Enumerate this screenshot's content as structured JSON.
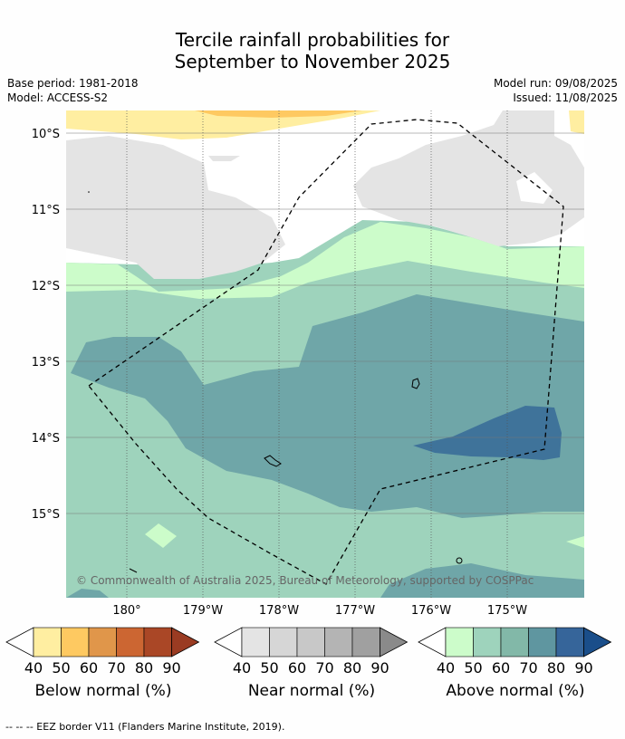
{
  "title": {
    "line1": "Tercile rainfall probabilities for",
    "line2": "September to November 2025"
  },
  "meta": {
    "base_period": "Base period: 1981-2018",
    "model": "Model: ACCESS-S2",
    "model_run": "Model run: 09/08/2025",
    "issued": "Issued: 11/08/2025"
  },
  "axes": {
    "lat_labels": [
      "10°S",
      "11°S",
      "12°S",
      "13°S",
      "14°S",
      "15°S"
    ],
    "lon_labels": [
      "180°",
      "179°W",
      "178°W",
      "177°W",
      "176°W",
      "175°W"
    ]
  },
  "copyright": "© Commonwealth of Australia 2025, Bureau of Meteorology, supported by COSPPac",
  "colorbars": [
    {
      "label": "Below normal (%)",
      "ticks": [
        "40",
        "50",
        "60",
        "70",
        "80",
        "90"
      ],
      "colors": [
        "#ffeea1",
        "#fec961",
        "#e0964a",
        "#cc6632",
        "#aa4726",
        "#9a3b22"
      ]
    },
    {
      "label": "Near normal (%)",
      "ticks": [
        "40",
        "50",
        "60",
        "70",
        "80",
        "90"
      ],
      "colors": [
        "#e4e4e4",
        "#d6d6d6",
        "#c8c8c8",
        "#b4b4b4",
        "#a0a0a0",
        "#8a8a8a"
      ]
    },
    {
      "label": "Above normal (%)",
      "ticks": [
        "40",
        "50",
        "60",
        "70",
        "80",
        "90"
      ],
      "colors": [
        "#ccfcca",
        "#9ed3bc",
        "#82b8a8",
        "#5f96a0",
        "#36659a",
        "#1a4e8a"
      ]
    }
  ],
  "footnote": "--  --  -- EEZ border V11 (Flanders Marine Institute, 2019).",
  "colors": {
    "below_40": "#ffeea1",
    "below_50": "#fec961",
    "near_40": "#e4e4e4",
    "above_40": "#ccfcca",
    "above_50": "#9ed3bc",
    "above_60": "#6fa6a8",
    "above_70": "#3f739a"
  }
}
